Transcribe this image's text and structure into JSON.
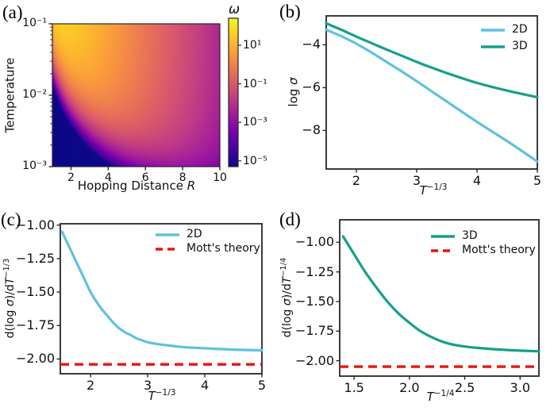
{
  "figure": {
    "background": "#ffffff",
    "text_color": "#111111",
    "frame_color": "#262626",
    "colors": {
      "line_2d": "#5fc2de",
      "line_3d": "#14a08b",
      "mott_red": "#e8150f"
    },
    "colormap_stops": [
      "#0d0887",
      "#46039f",
      "#7201a8",
      "#9c179e",
      "#bd3786",
      "#d8576b",
      "#ed7953",
      "#fb9f3a",
      "#fdca26",
      "#f0f921"
    ]
  },
  "chart_data": [
    {
      "id": "a",
      "type": "heatmap",
      "panel_tag": "(a)",
      "xlabel_text": "Hopping Distance ",
      "xlabel_var": "R",
      "ylabel": "Temperature",
      "xscale": "linear",
      "yscale": "log",
      "xlim": [
        1,
        10
      ],
      "ylim": [
        0.001,
        0.1
      ],
      "xtick_values": [
        2,
        4,
        6,
        8,
        10
      ],
      "xtick_labels": [
        "2",
        "4",
        "6",
        "8",
        "10"
      ],
      "ytick_values": [
        -1,
        -2,
        -3
      ],
      "ytick_labels": [
        "10⁻¹",
        "10⁻²",
        "10⁻³"
      ],
      "colormap": "plasma",
      "value_function": "log10(omega) = 2.9 - 0.52*R - 0.105/(T*R^2), clipped to colorbar range",
      "pattern": "bright yellow at small R / high T, dark navy wedge at low T small R, purple ridge near R~6-7 at lowest T, violet at large R",
      "colorbar": {
        "title": "ω",
        "tick_values": [
          1,
          -1,
          -3,
          -5
        ],
        "tick_labels": [
          "10¹",
          "10⁻¹",
          "10⁻³",
          "10⁻⁵"
        ],
        "clim_log10": [
          -5.3,
          2.4
        ]
      }
    },
    {
      "id": "b",
      "type": "line",
      "panel_tag": "(b)",
      "ylabel_pre": "log ",
      "ylabel_sym": "σ",
      "xlabel_var": "T",
      "xlabel_exp": "−1/3",
      "xlim": [
        1.5,
        5
      ],
      "ylim": [
        -9.8,
        -2.65
      ],
      "xtick_values": [
        2,
        3,
        4,
        5
      ],
      "xtick_labels": [
        "2",
        "3",
        "4",
        "5"
      ],
      "ytick_values": [
        -4,
        -6,
        -8
      ],
      "ytick_labels": [
        "−4",
        "−6",
        "−8"
      ],
      "legend_position": "upper right",
      "series": [
        {
          "name": "2D",
          "color": "#5fc2de",
          "style": "solid",
          "points": [
            [
              1.5,
              -3.3
            ],
            [
              1.75,
              -3.6
            ],
            [
              2,
              -3.95
            ],
            [
              2.25,
              -4.36
            ],
            [
              2.5,
              -4.8
            ],
            [
              2.75,
              -5.24
            ],
            [
              3,
              -5.7
            ],
            [
              3.5,
              -6.65
            ],
            [
              4,
              -7.6
            ],
            [
              4.5,
              -8.5
            ],
            [
              5,
              -9.45
            ]
          ]
        },
        {
          "name": "3D",
          "color": "#14a08b",
          "style": "solid",
          "points": [
            [
              1.5,
              -3.0
            ],
            [
              1.75,
              -3.3
            ],
            [
              2,
              -3.62
            ],
            [
              2.25,
              -3.92
            ],
            [
              2.5,
              -4.22
            ],
            [
              2.75,
              -4.51
            ],
            [
              3,
              -4.8
            ],
            [
              3.25,
              -5.07
            ],
            [
              3.5,
              -5.32
            ],
            [
              4,
              -5.78
            ],
            [
              4.5,
              -6.14
            ],
            [
              5,
              -6.45
            ]
          ]
        }
      ]
    },
    {
      "id": "c",
      "type": "line",
      "panel_tag": "(c)",
      "ylabel_p1": "d(log ",
      "ylabel_sym": "σ",
      "ylabel_p2": ")/d",
      "ylabel_T": "T",
      "ylabel_exp": "−1/3",
      "xlabel_var": "T",
      "xlabel_exp": "−1/3",
      "xlim": [
        1.47,
        5
      ],
      "ylim": [
        -2.11,
        -0.99
      ],
      "xtick_values": [
        2,
        3,
        4,
        5
      ],
      "xtick_labels": [
        "2",
        "3",
        "4",
        "5"
      ],
      "ytick_values": [
        -1.0,
        -1.25,
        -1.5,
        -1.75,
        -2.0
      ],
      "ytick_labels": [
        "−1.00",
        "−1.25",
        "−1.50",
        "−1.75",
        "−2.00"
      ],
      "legend_position": "upper right",
      "series": [
        {
          "name": "2D",
          "color": "#5fc2de",
          "style": "solid",
          "points": [
            [
              1.5,
              -1.05
            ],
            [
              1.6,
              -1.14
            ],
            [
              1.7,
              -1.23
            ],
            [
              1.8,
              -1.32
            ],
            [
              1.9,
              -1.41
            ],
            [
              2.0,
              -1.5
            ],
            [
              2.1,
              -1.57
            ],
            [
              2.2,
              -1.63
            ],
            [
              2.3,
              -1.68
            ],
            [
              2.4,
              -1.73
            ],
            [
              2.5,
              -1.77
            ],
            [
              2.6,
              -1.8
            ],
            [
              2.7,
              -1.82
            ],
            [
              2.8,
              -1.845
            ],
            [
              2.9,
              -1.86
            ],
            [
              3.0,
              -1.875
            ],
            [
              3.2,
              -1.89
            ],
            [
              3.4,
              -1.9
            ],
            [
              3.6,
              -1.91
            ],
            [
              4.0,
              -1.92
            ],
            [
              4.5,
              -1.93
            ],
            [
              5.0,
              -1.935
            ]
          ]
        },
        {
          "name": "Mott's theory",
          "color": "#e8150f",
          "style": "dashed",
          "hline": -2.04
        }
      ]
    },
    {
      "id": "d",
      "type": "line",
      "panel_tag": "(d)",
      "ylabel_p1": "d(log ",
      "ylabel_sym": "σ",
      "ylabel_p2": ")/d",
      "ylabel_T": "T",
      "ylabel_exp": "−1/4",
      "xlabel_var": "T",
      "xlabel_exp": "−1/4",
      "xlim": [
        1.37,
        3.17
      ],
      "ylim": [
        -2.13,
        -0.81
      ],
      "xtick_values": [
        1.5,
        2.0,
        2.5,
        3.0
      ],
      "xtick_labels": [
        "1.5",
        "2.0",
        "2.5",
        "3.0"
      ],
      "ytick_values": [
        -1.0,
        -1.25,
        -1.5,
        -1.75,
        -2.0
      ],
      "ytick_labels": [
        "−1.00",
        "−1.25",
        "−1.50",
        "−1.75",
        "−2.00"
      ],
      "legend_position": "upper right",
      "series": [
        {
          "name": "3D",
          "color": "#14a08b",
          "style": "solid",
          "points": [
            [
              1.4,
              -0.95
            ],
            [
              1.5,
              -1.1
            ],
            [
              1.6,
              -1.25
            ],
            [
              1.7,
              -1.38
            ],
            [
              1.8,
              -1.5
            ],
            [
              1.9,
              -1.6
            ],
            [
              2.0,
              -1.68
            ],
            [
              2.1,
              -1.75
            ],
            [
              2.2,
              -1.8
            ],
            [
              2.3,
              -1.84
            ],
            [
              2.4,
              -1.865
            ],
            [
              2.5,
              -1.88
            ],
            [
              2.6,
              -1.89
            ],
            [
              2.8,
              -1.905
            ],
            [
              3.0,
              -1.915
            ],
            [
              3.17,
              -1.92
            ]
          ]
        },
        {
          "name": "Mott's theory",
          "color": "#e8150f",
          "style": "dashed",
          "hline": -2.05
        }
      ]
    }
  ]
}
